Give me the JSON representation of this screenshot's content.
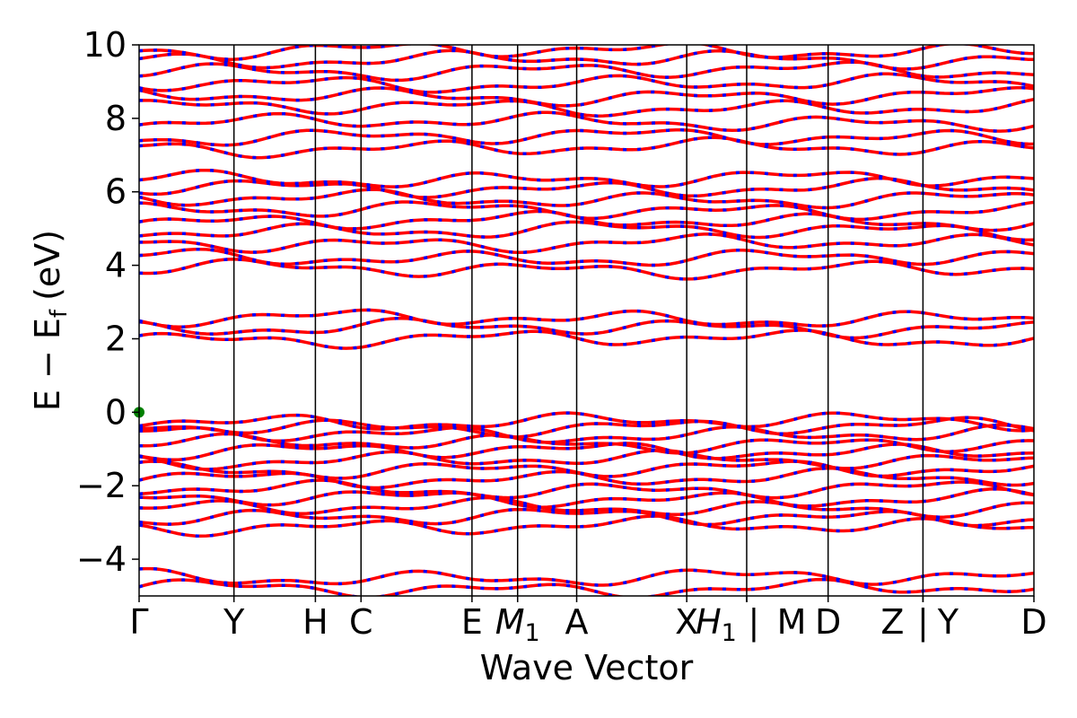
{
  "chart_data": {
    "type": "line",
    "xlabel": "Wave Vector",
    "ylabel": "E − E",
    "ylabel_sub": "f",
    "ylabel_unit": "(eV)",
    "ylim": [
      -5,
      10
    ],
    "yticks": [
      -4,
      -2,
      0,
      2,
      4,
      6,
      8,
      10
    ],
    "ytick_labels": [
      "−4",
      "−2",
      "0",
      "2",
      "4",
      "6",
      "8",
      "10"
    ],
    "kpoints": [
      {
        "label": "Γ",
        "sub": "",
        "x": 0.0
      },
      {
        "label": "Y",
        "sub": "",
        "x": 0.106
      },
      {
        "label": "H",
        "sub": "",
        "x": 0.197
      },
      {
        "label": "C",
        "sub": "",
        "x": 0.248
      },
      {
        "label": "E",
        "sub": "",
        "x": 0.372
      },
      {
        "label": "M",
        "sub": "1",
        "x": 0.423
      },
      {
        "label": "A",
        "sub": "",
        "x": 0.489
      },
      {
        "label": "X",
        "sub": "",
        "x": 0.612
      },
      {
        "label": "H",
        "sub": "1",
        "x": 0.679
      },
      {
        "label": "|",
        "sub": "",
        "x": 0.679
      },
      {
        "label": "M",
        "sub": "",
        "x": 0.679
      },
      {
        "label": "D",
        "sub": "",
        "x": 0.77
      },
      {
        "label": "Z",
        "sub": "",
        "x": 0.876
      },
      {
        "label": "|",
        "sub": "",
        "x": 0.876
      },
      {
        "label": "Y",
        "sub": "",
        "x": 0.876
      },
      {
        "label": "D",
        "sub": "",
        "x": 1.0
      }
    ],
    "vlines": [
      0.106,
      0.197,
      0.248,
      0.372,
      0.423,
      0.489,
      0.612,
      0.679,
      0.77,
      0.876
    ],
    "band_colors": {
      "spin_up": "#ff0000",
      "spin_down": "#0000ff"
    },
    "marker": {
      "x": 0.0,
      "y": 0.0,
      "color": "#008000"
    },
    "band_centers": [
      -4.8,
      -4.5,
      -3.1,
      -2.85,
      -2.6,
      -2.35,
      -2.1,
      -1.8,
      -1.55,
      -1.3,
      -1.05,
      -0.85,
      -0.6,
      -0.4,
      -0.25,
      2.0,
      2.3,
      2.55,
      3.9,
      4.2,
      4.6,
      4.95,
      5.2,
      5.5,
      5.8,
      6.1,
      6.35,
      7.2,
      7.5,
      7.9,
      8.3,
      8.6,
      8.95,
      9.3,
      9.6,
      9.85
    ]
  }
}
